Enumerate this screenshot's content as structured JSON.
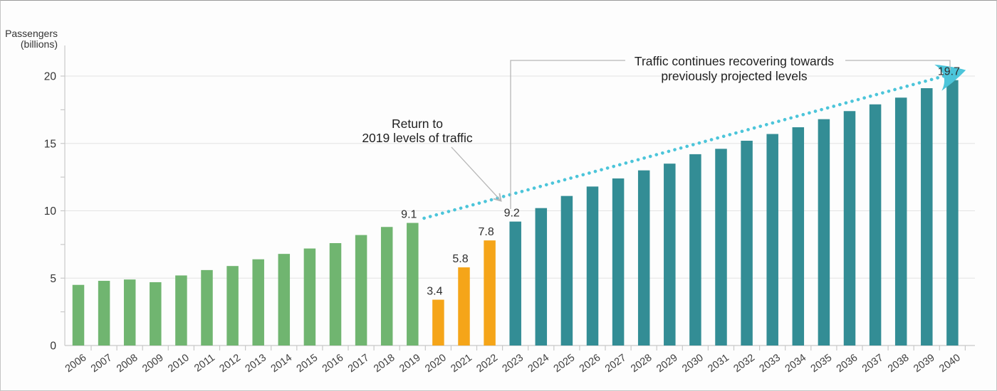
{
  "chart_data": {
    "type": "bar",
    "title": "",
    "ylabel": "Passengers (billions)",
    "ylabel_line1": "Passengers",
    "ylabel_line2": "(billions)",
    "ylim": [
      0,
      21
    ],
    "yticks": [
      0,
      5,
      10,
      15,
      20
    ],
    "y_minor_step": 2.5,
    "grid": "horizontal-major-only",
    "legend": "none",
    "categories": [
      2006,
      2007,
      2008,
      2009,
      2010,
      2011,
      2012,
      2013,
      2014,
      2015,
      2016,
      2017,
      2018,
      2019,
      2020,
      2021,
      2022,
      2023,
      2024,
      2025,
      2026,
      2027,
      2028,
      2029,
      2030,
      2031,
      2032,
      2033,
      2034,
      2035,
      2036,
      2037,
      2038,
      2039,
      2040
    ],
    "values": [
      4.5,
      4.8,
      4.9,
      4.7,
      5.2,
      5.6,
      5.9,
      6.4,
      6.8,
      7.2,
      7.6,
      8.2,
      8.8,
      9.1,
      3.4,
      5.8,
      7.8,
      9.2,
      10.2,
      11.1,
      11.8,
      12.4,
      13.0,
      13.5,
      14.2,
      14.6,
      15.2,
      15.7,
      16.2,
      16.8,
      17.4,
      17.9,
      18.4,
      19.1,
      19.7
    ],
    "segments": [
      {
        "name": "historical",
        "from_year": 2006,
        "to_year": 2019,
        "color": "#70b570"
      },
      {
        "name": "covid-impact",
        "from_year": 2020,
        "to_year": 2022,
        "color": "#f5a519"
      },
      {
        "name": "forecast",
        "from_year": 2023,
        "to_year": 2040,
        "color": "#338d95"
      }
    ],
    "value_labels": {
      "2019": "9.1",
      "2020": "3.4",
      "2021": "5.8",
      "2022": "7.8",
      "2023": "9.2",
      "2040": "19.7"
    },
    "projection_line": {
      "start_year": 2019.45,
      "start_value": 9.45,
      "end_year": 2040.35,
      "end_value": 20.35,
      "color": "#4cc5da",
      "style": "dotted",
      "arrow_end": true
    },
    "annotations": {
      "return_to_2019": {
        "line1": "Return to",
        "line2": "2019 levels of traffic"
      },
      "recovery": {
        "line1": "Traffic continues recovering towards",
        "line2": "previously projected levels"
      }
    }
  },
  "colors": {
    "background": "#ffffff",
    "grid": "#e3e3e3",
    "axis": "#c9c9c9",
    "tick_label": "#333333",
    "year_label": "#3f3f3f",
    "value_label": "#2e2e2e",
    "annotation_text": "#1f1f1f",
    "callout": "#b7b7b7"
  }
}
